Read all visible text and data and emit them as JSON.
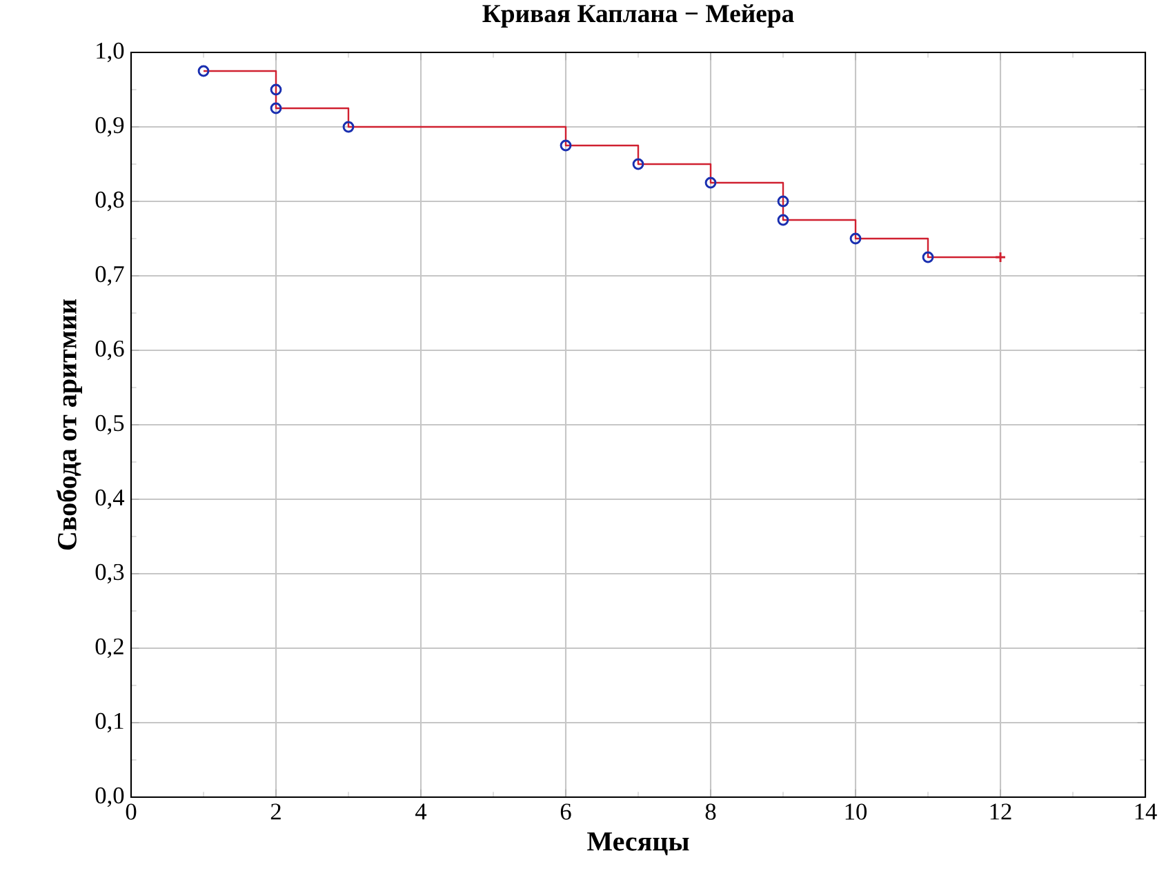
{
  "chart_data": {
    "type": "step",
    "title": "Кривая Каплана − Мейера",
    "xlabel": "Месяцы",
    "ylabel": "Свобода от аритмии",
    "xlim": [
      0,
      14
    ],
    "xticks": [
      0,
      2,
      4,
      6,
      8,
      10,
      12,
      14
    ],
    "ylim": [
      0,
      1
    ],
    "yticks": [
      {
        "value": 0,
        "label": "0,0"
      },
      {
        "value": 0.1,
        "label": "0,1"
      },
      {
        "value": 0.2,
        "label": "0,2"
      },
      {
        "value": 0.3,
        "label": "0,3"
      },
      {
        "value": 0.4,
        "label": "0,4"
      },
      {
        "value": 0.5,
        "label": "0,5"
      },
      {
        "value": 0.6,
        "label": "0,6"
      },
      {
        "value": 0.7,
        "label": "0,7"
      },
      {
        "value": 0.8,
        "label": "0,8"
      },
      {
        "value": 0.9,
        "label": "0,9"
      },
      {
        "value": 1,
        "label": "1,0"
      }
    ],
    "grid": true,
    "series": [
      {
        "color": "#d02030",
        "marker": "none",
        "x": [
          1,
          2,
          3,
          6,
          7,
          8,
          9,
          10,
          11,
          12
        ],
        "values": [
          0.975,
          0.925,
          0.9,
          0.875,
          0.85,
          0.825,
          0.775,
          0.75,
          0.725,
          0.725
        ]
      },
      {
        "type": "scatter",
        "color": "#1a2fb0",
        "marker": "circle",
        "x": [
          1,
          2,
          2,
          3,
          6,
          7,
          8,
          9,
          9,
          10,
          11
        ],
        "values": [
          0.975,
          0.95,
          0.925,
          0.9,
          0.875,
          0.85,
          0.825,
          0.8,
          0.775,
          0.75,
          0.725
        ]
      },
      {
        "type": "scatter",
        "color": "#d02030",
        "marker": "cross",
        "x": [
          12
        ],
        "values": [
          0.725
        ]
      }
    ]
  }
}
